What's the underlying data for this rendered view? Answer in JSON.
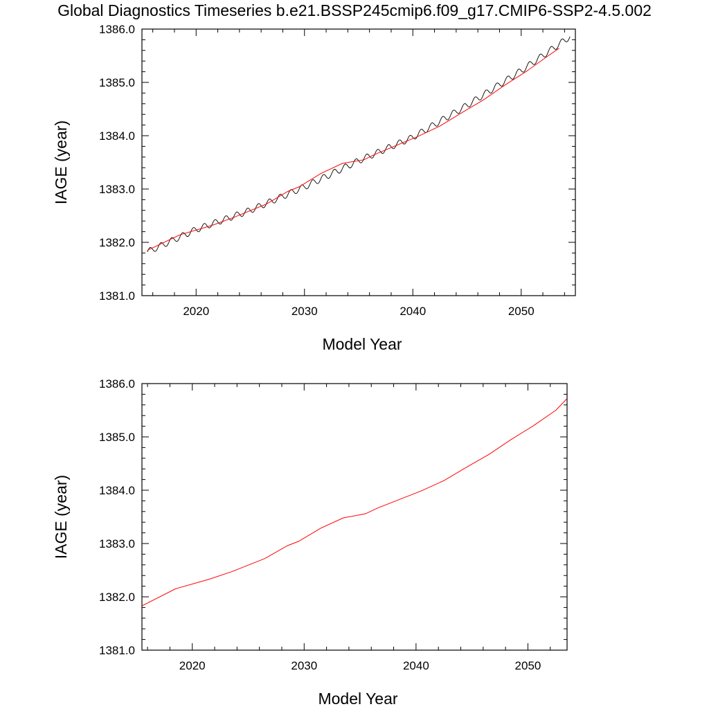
{
  "page": {
    "title": "Global Diagnostics Timeseries b.e21.BSSP245cmip6.f09_g17.CMIP6-SSP2-4.5.002"
  },
  "colors": {
    "monthly_series": "#000000",
    "annual_series": "#ff0000",
    "frame": "#000000"
  },
  "chart_data": [
    {
      "type": "line",
      "title": "Global Diagnostics Timeseries b.e21.BSSP245cmip6.f09_g17.CMIP6-SSP2-4.5.002",
      "xlabel": "Model Year",
      "ylabel": "IAGE (year)",
      "xlim": [
        2015,
        2055
      ],
      "ylim": [
        1381.0,
        1386.0
      ],
      "x_ticks": [
        "2020",
        "2030",
        "2040",
        "2050"
      ],
      "y_ticks": [
        "1381.0",
        "1382.0",
        "1383.0",
        "1384.0",
        "1385.0",
        "1386.0"
      ],
      "grid": false,
      "series": [
        {
          "style": "monthly",
          "x": [
            2015.5,
            2020,
            2025,
            2030,
            2035,
            2040,
            2045,
            2050,
            2054.5
          ],
          "y": [
            1381.82,
            1382.24,
            1382.6,
            1383.04,
            1383.53,
            1383.97,
            1384.57,
            1385.22,
            1385.86
          ],
          "seasonal_amplitude": 0.06
        },
        {
          "style": "annual",
          "x": [
            2015.5,
            2018.5,
            2021.5,
            2023.5,
            2026.5,
            2028.5,
            2029.5,
            2031.5,
            2033.5,
            2035.5,
            2036.5,
            2040.5,
            2042.5,
            2044.5,
            2046.5,
            2048.5,
            2050.5,
            2052.5,
            2053.5
          ],
          "y": [
            1381.85,
            1382.14,
            1382.32,
            1382.47,
            1382.72,
            1382.96,
            1383.04,
            1383.29,
            1383.48,
            1383.55,
            1383.65,
            1383.99,
            1384.18,
            1384.43,
            1384.67,
            1384.95,
            1385.21,
            1385.5,
            1385.64
          ]
        }
      ]
    },
    {
      "type": "line",
      "title": "",
      "xlabel": "Model Year",
      "ylabel": "IAGE (year)",
      "xlim": [
        2015.5,
        2053.5
      ],
      "ylim": [
        1381.0,
        1386.0
      ],
      "x_ticks": [
        "2020",
        "2030",
        "2040",
        "2050"
      ],
      "y_ticks": [
        "1381.0",
        "1382.0",
        "1383.0",
        "1384.0",
        "1385.0",
        "1386.0"
      ],
      "grid": false,
      "series": [
        {
          "style": "annual",
          "x": [
            2015.5,
            2018.5,
            2021.5,
            2023.5,
            2026.5,
            2028.5,
            2029.5,
            2031.5,
            2033.5,
            2035.5,
            2036.5,
            2040.5,
            2042.5,
            2044.5,
            2046.5,
            2048.5,
            2050.5,
            2052.5,
            2053.5
          ],
          "y": [
            1381.83,
            1382.15,
            1382.33,
            1382.47,
            1382.72,
            1382.96,
            1383.04,
            1383.29,
            1383.48,
            1383.56,
            1383.66,
            1383.99,
            1384.18,
            1384.43,
            1384.67,
            1384.95,
            1385.21,
            1385.5,
            1385.72
          ]
        }
      ]
    }
  ]
}
